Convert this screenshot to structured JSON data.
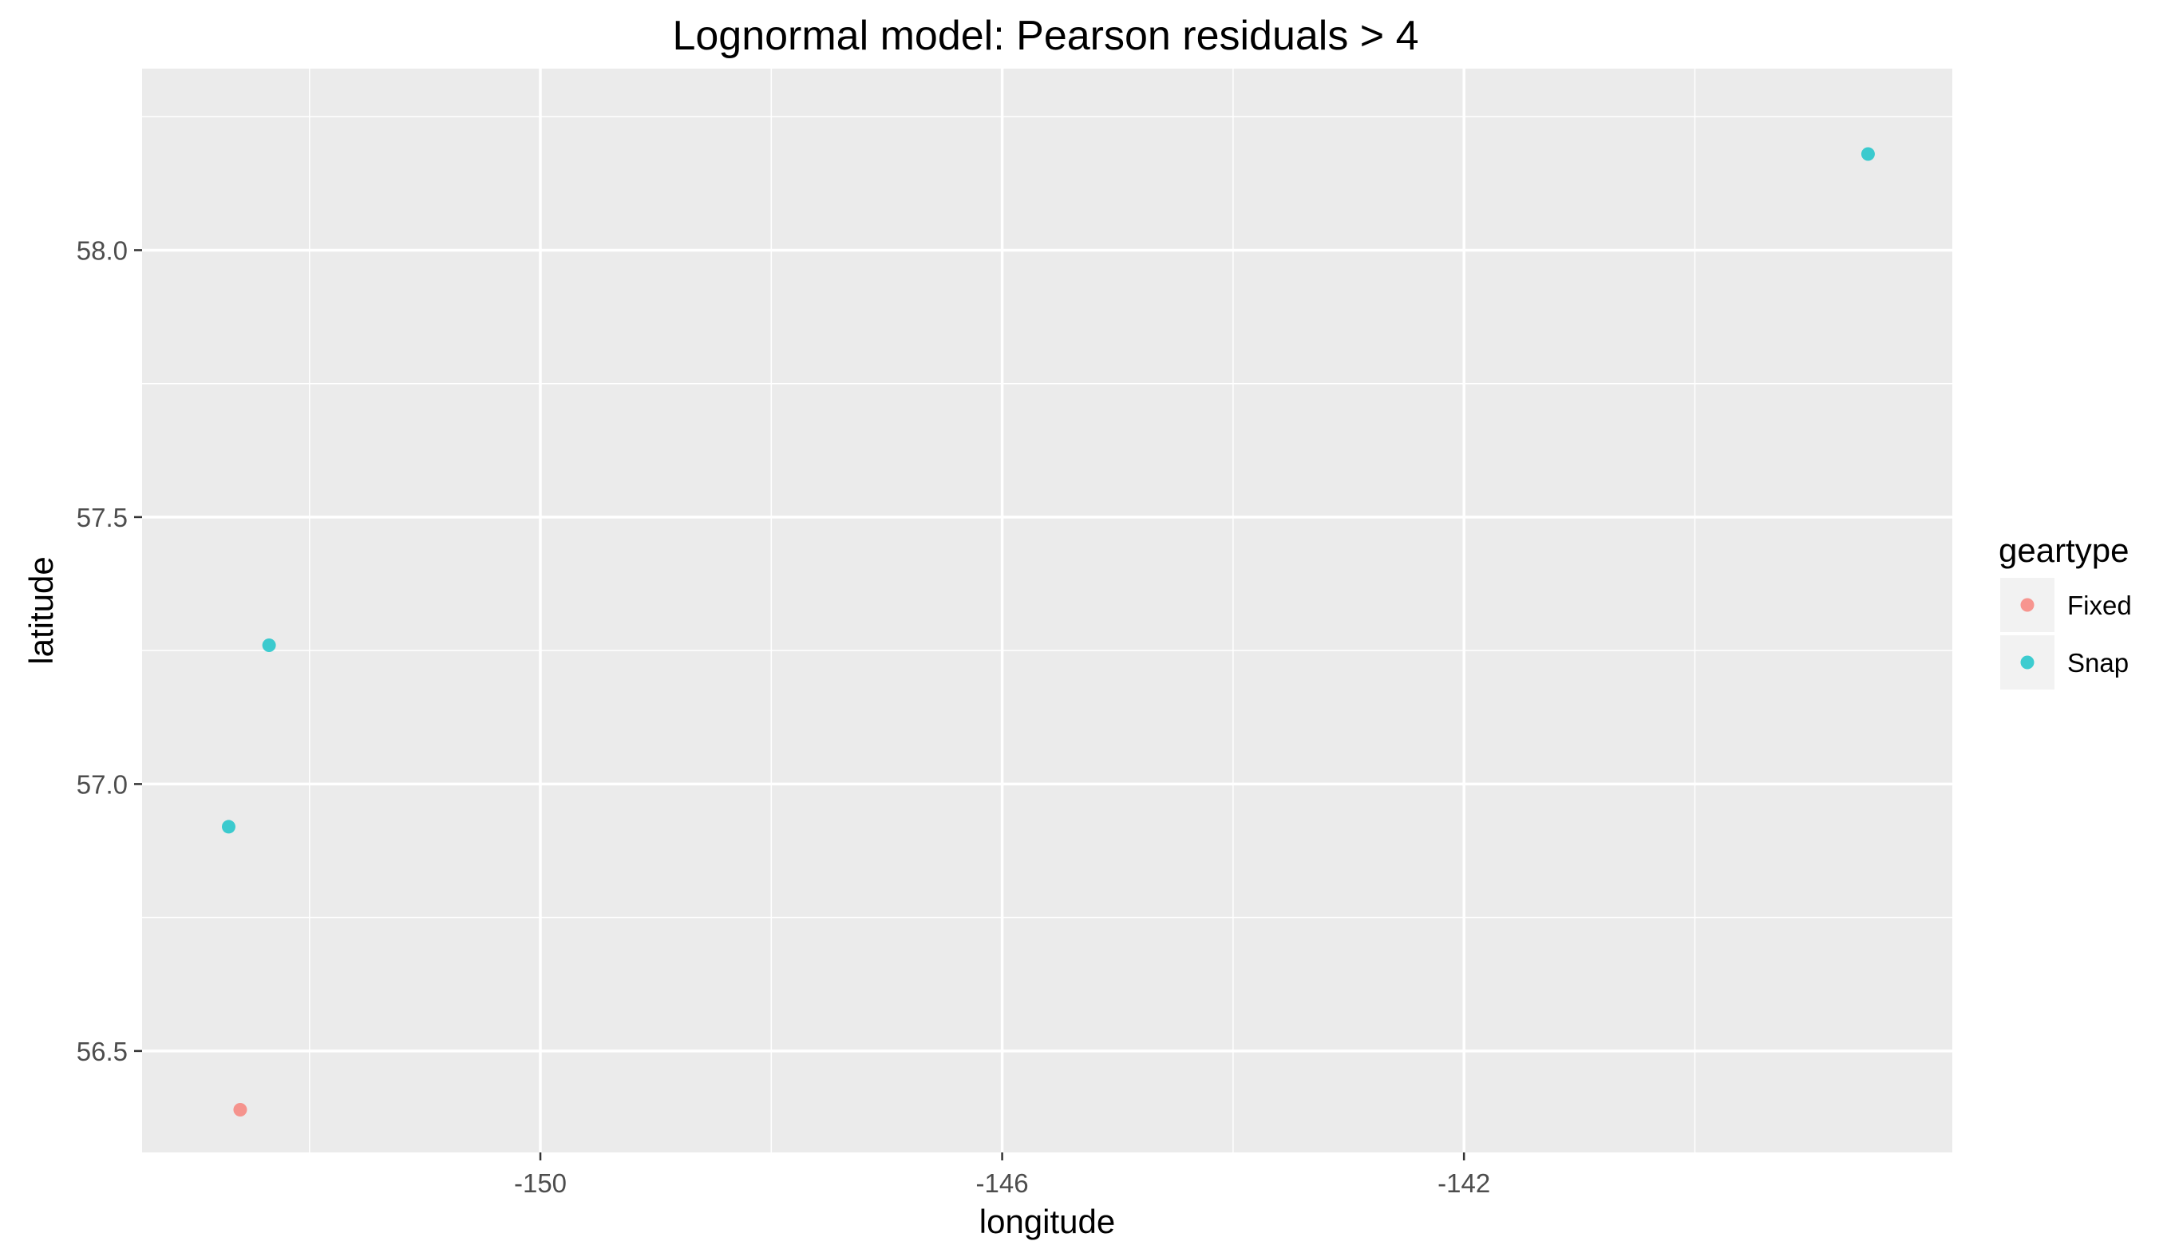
{
  "chart_data": {
    "type": "scatter",
    "title": "Lognormal model: Pearson residuals > 4",
    "xlabel": "longitude",
    "ylabel": "latitude",
    "xlim": [
      -153.45,
      -137.77
    ],
    "ylim": [
      56.31,
      58.34
    ],
    "x_ticks": [
      -150,
      -146,
      -142
    ],
    "x_tick_labels": [
      "-150",
      "-146",
      "-142"
    ],
    "y_ticks": [
      56.5,
      57.0,
      57.5,
      58.0
    ],
    "y_tick_labels": [
      "56.5",
      "57.0",
      "57.5",
      "58.0"
    ],
    "grid": true,
    "background": "#EBEBEB",
    "legend": {
      "title": "geartype",
      "position": "right"
    },
    "series": [
      {
        "name": "Fixed",
        "color": "#F8766D",
        "points": [
          {
            "x": -152.6,
            "y": 56.39
          }
        ]
      },
      {
        "name": "Snap",
        "color": "#00BFC4",
        "points": [
          {
            "x": -152.7,
            "y": 56.92
          },
          {
            "x": -152.35,
            "y": 57.26
          },
          {
            "x": -138.5,
            "y": 58.18
          }
        ]
      }
    ]
  }
}
